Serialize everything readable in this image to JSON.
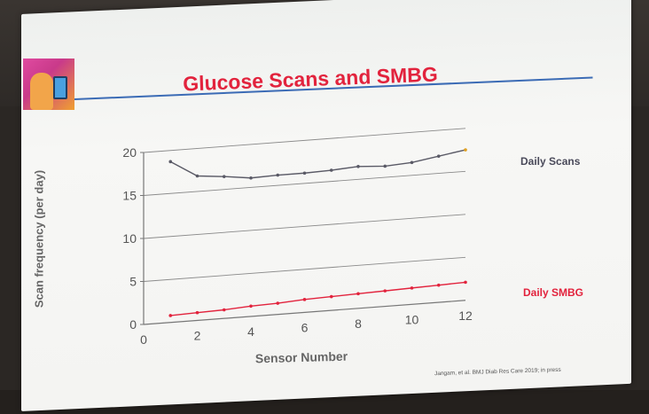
{
  "slide": {
    "title": "Glucose Scans and SMBG",
    "source": "Jangam, et al.  BMJ Diab Res Care 2019; in press"
  },
  "colors": {
    "title": "#e2233d",
    "rule": "#3b6bb5",
    "scans_line": "#5a5a66",
    "smbg_line": "#e2233d"
  },
  "chart_data": {
    "type": "line",
    "xlabel": "Sensor Number",
    "ylabel": "Scan frequency (per day)",
    "xlim": [
      0,
      12
    ],
    "ylim": [
      0,
      20
    ],
    "x_ticks": [
      0,
      2,
      4,
      6,
      8,
      10,
      12
    ],
    "y_ticks": [
      0,
      5,
      10,
      15,
      20
    ],
    "grid": "horizontal",
    "legend_placement": "right, next to each series",
    "series": [
      {
        "name": "Daily Scans",
        "x": [
          1,
          2,
          3,
          4,
          5,
          6,
          7,
          8,
          9,
          10,
          11,
          12
        ],
        "values": [
          18.7,
          16.8,
          16.5,
          16.1,
          16.2,
          16.2,
          16.3,
          16.5,
          16.3,
          16.5,
          17.0,
          17.5
        ]
      },
      {
        "name": "Daily SMBG",
        "x": [
          1,
          2,
          3,
          4,
          5,
          6,
          7,
          8,
          9,
          10,
          11,
          12
        ],
        "values": [
          0.8,
          0.9,
          1.0,
          1.2,
          1.3,
          1.5,
          1.6,
          1.7,
          1.8,
          1.9,
          2.0,
          2.1
        ]
      }
    ]
  }
}
